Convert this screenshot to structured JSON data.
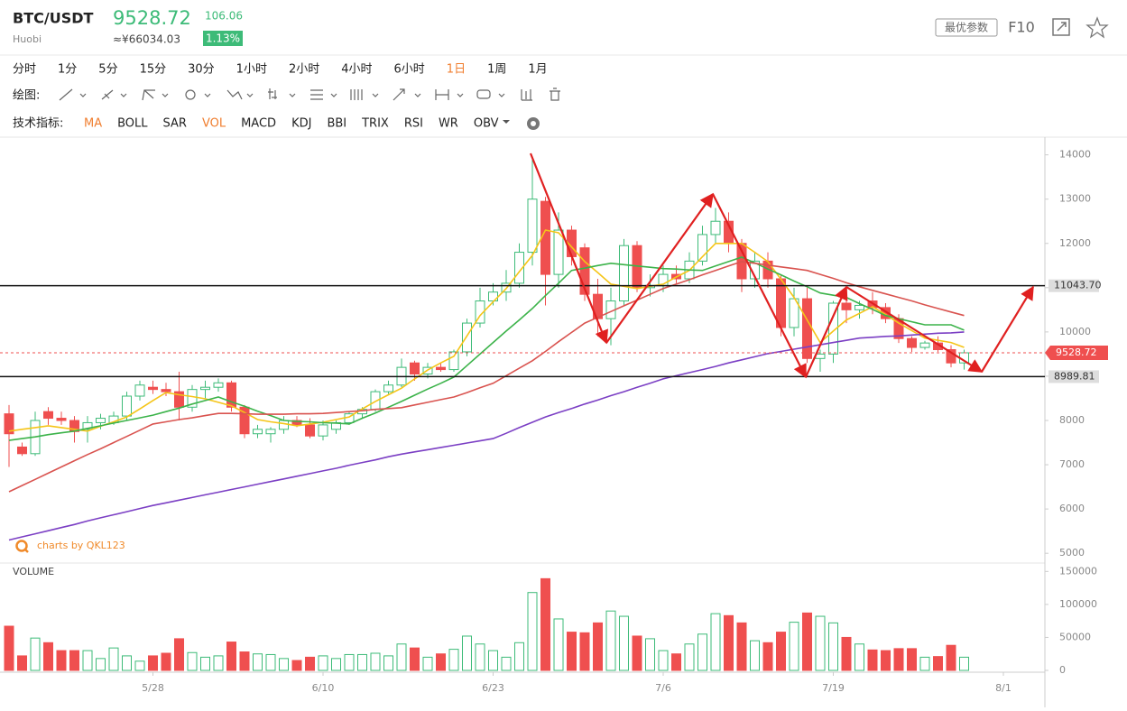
{
  "header": {
    "symbol": "BTC/USDT",
    "exchange": "Huobi",
    "price": "9528.72",
    "change": "106.06",
    "cny": "≈¥66034.03",
    "change_pct": "1.13%",
    "buttons": [
      "最优参数",
      "F10"
    ]
  },
  "intervals": [
    {
      "label": "分时",
      "active": false
    },
    {
      "label": "1分",
      "active": false
    },
    {
      "label": "5分",
      "active": false
    },
    {
      "label": "15分",
      "active": false
    },
    {
      "label": "30分",
      "active": false
    },
    {
      "label": "1小时",
      "active": false
    },
    {
      "label": "2小时",
      "active": false
    },
    {
      "label": "4小时",
      "active": false
    },
    {
      "label": "6小时",
      "active": false
    },
    {
      "label": "1日",
      "active": true
    },
    {
      "label": "1周",
      "active": false
    },
    {
      "label": "1月",
      "active": false
    }
  ],
  "draw_label": "绘图:",
  "indicator_label": "技术指标:",
  "indicators": [
    {
      "label": "MA",
      "active": true
    },
    {
      "label": "BOLL",
      "active": false
    },
    {
      "label": "SAR",
      "active": false
    },
    {
      "label": "VOL",
      "active": true
    },
    {
      "label": "MACD",
      "active": false
    },
    {
      "label": "KDJ",
      "active": false
    },
    {
      "label": "BBI",
      "active": false
    },
    {
      "label": "TRIX",
      "active": false
    },
    {
      "label": "RSI",
      "active": false
    },
    {
      "label": "WR",
      "active": false
    },
    {
      "label": "OBV",
      "active": false
    }
  ],
  "chart_data": {
    "type": "candlestick",
    "categories": [
      null,
      null,
      null,
      null,
      null,
      null,
      null,
      null,
      null,
      null,
      null,
      "5/28",
      null,
      null,
      null,
      null,
      null,
      null,
      null,
      null,
      null,
      null,
      null,
      null,
      "6/10",
      null,
      null,
      null,
      null,
      null,
      null,
      null,
      null,
      null,
      null,
      null,
      null,
      "6/23",
      null,
      null,
      null,
      null,
      null,
      null,
      null,
      null,
      null,
      null,
      null,
      null,
      "7/6",
      null,
      null,
      null,
      null,
      null,
      null,
      null,
      null,
      null,
      null,
      null,
      null,
      "7/19",
      null,
      null,
      null,
      null,
      null,
      null,
      null,
      null,
      null,
      null,
      null,
      null,
      "8/1",
      null,
      null,
      null
    ],
    "open": [
      8150,
      7400,
      7250,
      8200,
      8050,
      8000,
      7800,
      7950,
      7950,
      8100,
      8550,
      8750,
      8700,
      8650,
      8300,
      8700,
      8750,
      8850,
      8300,
      7700,
      7700,
      7800,
      8000,
      7900,
      7650,
      7800,
      7950,
      8150,
      8250,
      8650,
      8800,
      9300,
      9050,
      9200,
      9150,
      9550,
      10200,
      10700,
      10900,
      11100,
      11800,
      12950,
      11300,
      12300,
      11900,
      10850,
      10300,
      10700,
      11950,
      11000,
      11050,
      11300,
      11200,
      11600,
      12200,
      12500,
      12000,
      11200,
      11600,
      11200,
      10100,
      10750,
      9400,
      9500,
      10650,
      10500,
      10700,
      10550,
      10300,
      9850,
      9650,
      9750,
      9600,
      9300,
      null,
      null,
      null,
      null,
      null,
      null
    ],
    "high": [
      8350,
      7500,
      8200,
      8300,
      8200,
      8100,
      8100,
      8150,
      8200,
      8650,
      8900,
      8900,
      8850,
      9100,
      8800,
      8900,
      8950,
      8900,
      8350,
      7900,
      7850,
      8100,
      8100,
      8050,
      8000,
      8000,
      8200,
      8300,
      8700,
      8900,
      9400,
      9350,
      9300,
      9300,
      9600,
      10300,
      11000,
      11100,
      11400,
      12000,
      13900,
      13050,
      12700,
      12400,
      12000,
      11200,
      11000,
      12100,
      12050,
      11300,
      11500,
      11500,
      11800,
      12400,
      12800,
      12700,
      12100,
      11800,
      11800,
      11300,
      11000,
      11000,
      9600,
      10700,
      10800,
      10700,
      10900,
      10650,
      10400,
      9900,
      9800,
      9900,
      9700,
      9600,
      null,
      null,
      null,
      null,
      null,
      null
    ],
    "low": [
      6950,
      7200,
      7200,
      7900,
      7900,
      7500,
      7500,
      7800,
      7900,
      8000,
      8450,
      8600,
      8550,
      8000,
      8200,
      8500,
      8650,
      8200,
      7600,
      7600,
      7500,
      7700,
      7850,
      7600,
      7550,
      7700,
      7900,
      8050,
      8200,
      8600,
      8750,
      8900,
      8950,
      9100,
      9100,
      9450,
      10100,
      10600,
      10700,
      11000,
      11500,
      10600,
      11000,
      11500,
      10700,
      9900,
      9700,
      10600,
      10900,
      10800,
      10900,
      11100,
      11100,
      11500,
      12000,
      11800,
      10900,
      11000,
      11000,
      9900,
      9900,
      9300,
      9100,
      9300,
      10200,
      10300,
      10400,
      10200,
      9750,
      9550,
      9600,
      9550,
      9200,
      9150,
      null,
      null,
      null,
      null,
      null,
      null
    ],
    "close": [
      7700,
      7250,
      8000,
      8050,
      8000,
      7750,
      7950,
      8050,
      8100,
      8550,
      8800,
      8700,
      8650,
      8300,
      8700,
      8750,
      8850,
      8300,
      7700,
      7800,
      7800,
      8000,
      7900,
      7650,
      7900,
      7950,
      8150,
      8250,
      8650,
      8800,
      9200,
      9050,
      9200,
      9150,
      9550,
      10200,
      10700,
      10900,
      11100,
      11800,
      13000,
      11300,
      12300,
      11700,
      10850,
      10300,
      10700,
      11950,
      11000,
      11050,
      11300,
      11200,
      11600,
      12200,
      12500,
      12000,
      11200,
      11600,
      11200,
      10100,
      10750,
      9400,
      9500,
      10650,
      10500,
      10600,
      10550,
      10300,
      9850,
      9650,
      9750,
      9600,
      9300,
      9528.72,
      null,
      null,
      null,
      null,
      null,
      null
    ],
    "volume": [
      67000,
      22000,
      49000,
      42000,
      30000,
      30000,
      30000,
      18000,
      34000,
      22000,
      14000,
      22000,
      26000,
      48000,
      27000,
      20000,
      22000,
      43000,
      28000,
      25000,
      24000,
      18000,
      15000,
      20000,
      22000,
      18000,
      24000,
      24000,
      26000,
      22000,
      40000,
      34000,
      20000,
      25000,
      32000,
      52000,
      40000,
      30000,
      20000,
      42000,
      118000,
      139000,
      78000,
      58000,
      57000,
      72000,
      90000,
      82000,
      52000,
      48000,
      30000,
      25000,
      40000,
      55000,
      86000,
      83000,
      72000,
      45000,
      42000,
      58000,
      73000,
      87000,
      82000,
      72000,
      50000,
      40000,
      31000,
      30000,
      33000,
      33000,
      20000,
      21000,
      38000,
      20000,
      null,
      null,
      null,
      null,
      null,
      null
    ],
    "up_color": "#3dbb78",
    "down_color": "#ef4f4f",
    "lines": [
      {
        "color": "#f5c518",
        "values": [
          7760,
          7800,
          7840,
          7880,
          7840,
          7800,
          7760,
          7870,
          7970,
          8080,
          8260,
          8450,
          8630,
          8580,
          8540,
          8490,
          8410,
          8330,
          8180,
          8020,
          7970,
          7930,
          7880,
          7920,
          7960,
          8020,
          8080,
          8260,
          8430,
          8580,
          8730,
          8940,
          9140,
          9300,
          9450,
          9910,
          10370,
          10680,
          10980,
          11360,
          11730,
          12300,
          12240,
          11920,
          11590,
          11340,
          11080,
          11030,
          10980,
          11030,
          11080,
          11240,
          11390,
          11700,
          12000,
          12000,
          12000,
          11800,
          11590,
          11190,
          10780,
          10270,
          9760,
          10020,
          10270,
          10420,
          10570,
          10390,
          10200,
          10030,
          9860,
          9810,
          9760,
          9650,
          null,
          null,
          null,
          null,
          null,
          null
        ]
      },
      {
        "color": "#3cb34a",
        "values": [
          7550,
          7590,
          7630,
          7680,
          7720,
          7760,
          7820,
          7880,
          7940,
          8000,
          8060,
          8120,
          8200,
          8280,
          8370,
          8450,
          8530,
          8420,
          8320,
          8210,
          8110,
          8000,
          7980,
          7970,
          7950,
          7940,
          7920,
          8050,
          8170,
          8300,
          8430,
          8570,
          8710,
          8840,
          8980,
          9240,
          9500,
          9760,
          10020,
          10270,
          10530,
          10820,
          11100,
          11390,
          11440,
          11500,
          11550,
          11520,
          11490,
          11460,
          11430,
          11420,
          11400,
          11390,
          11490,
          11590,
          11690,
          11560,
          11420,
          11290,
          11150,
          11020,
          10880,
          10830,
          10780,
          10640,
          10510,
          10370,
          10300,
          10230,
          10160,
          10160,
          10160,
          10040,
          null,
          null,
          null,
          null,
          null,
          null
        ]
      },
      {
        "color": "#d9534f",
        "values": [
          6390,
          6530,
          6670,
          6810,
          6950,
          7090,
          7230,
          7360,
          7500,
          7640,
          7780,
          7920,
          7970,
          8020,
          8060,
          8110,
          8160,
          8160,
          8150,
          8140,
          8140,
          8140,
          8150,
          8150,
          8160,
          8180,
          8200,
          8220,
          8250,
          8270,
          8290,
          8350,
          8410,
          8470,
          8530,
          8630,
          8740,
          8840,
          9010,
          9180,
          9350,
          9560,
          9780,
          9990,
          10200,
          10330,
          10460,
          10590,
          10720,
          10850,
          10980,
          11080,
          11180,
          11290,
          11390,
          11490,
          11590,
          11550,
          11510,
          11470,
          11430,
          11390,
          11300,
          11210,
          11110,
          11020,
          10940,
          10860,
          10780,
          10700,
          10610,
          10530,
          10450,
          10370,
          null,
          null,
          null,
          null,
          null,
          null
        ]
      },
      {
        "color": "#7b3fc4",
        "values": [
          5300,
          5370,
          5440,
          5510,
          5580,
          5650,
          5730,
          5800,
          5870,
          5940,
          6010,
          6080,
          6140,
          6200,
          6260,
          6320,
          6380,
          6440,
          6500,
          6560,
          6620,
          6680,
          6740,
          6800,
          6860,
          6920,
          6990,
          7050,
          7110,
          7180,
          7240,
          7290,
          7340,
          7390,
          7440,
          7490,
          7540,
          7590,
          7710,
          7840,
          7960,
          8080,
          8180,
          8270,
          8370,
          8460,
          8560,
          8650,
          8750,
          8840,
          8940,
          9010,
          9080,
          9150,
          9220,
          9300,
          9370,
          9440,
          9510,
          9560,
          9610,
          9660,
          9710,
          9760,
          9810,
          9860,
          9880,
          9900,
          9910,
          9930,
          9950,
          9970,
          9980,
          10000,
          null,
          null,
          null,
          null,
          null,
          null
        ]
      }
    ],
    "levels": [
      {
        "value": 11043.7,
        "label": "11043.70"
      },
      {
        "value": 8989.81,
        "label": "8989.81"
      }
    ],
    "last_price": {
      "value": 9528.72,
      "label": "9528.72"
    },
    "ylim": [
      4800,
      14400
    ],
    "yticks": [
      5000,
      6000,
      7000,
      8000,
      9000,
      10000,
      11000,
      12000,
      13000,
      14000
    ],
    "volume_label": "VOLUME",
    "volume_ylim": [
      0,
      160000
    ],
    "volume_yticks": [
      0,
      50000,
      100000,
      150000
    ],
    "watermark": "charts by QKL123"
  }
}
